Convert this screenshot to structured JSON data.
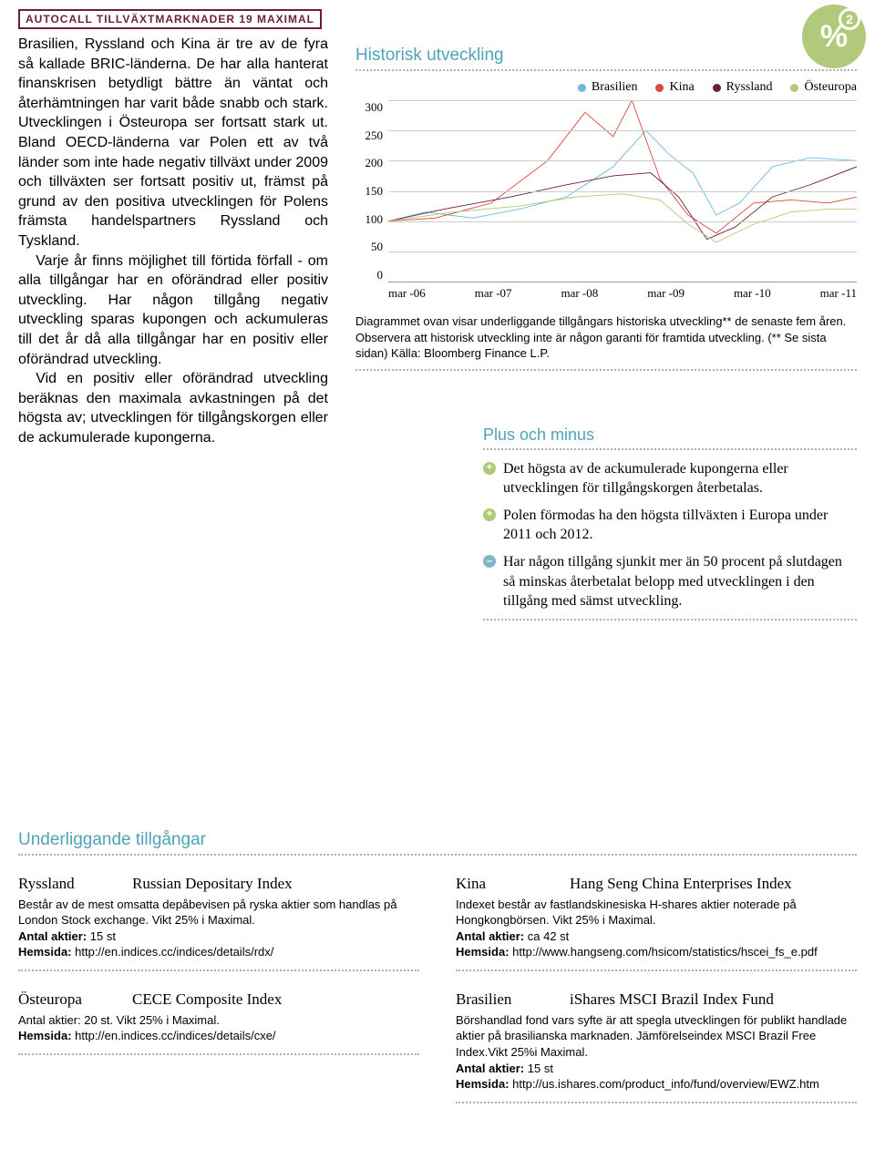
{
  "header_tag": "AUTOCALL TILLVÄXTMARKNADER 19 MAXIMAL",
  "body": {
    "p1": "Brasilien, Ryssland och Kina är tre av de fyra så kallade BRIC-länderna. De har alla hanterat finanskrisen betydligt bättre än väntat och återhämtningen har varit både snabb och stark. Utvecklingen i Östeuropa ser fortsatt stark ut. Bland OECD-länderna var Polen ett av två länder som inte hade negativ tillväxt under 2009 och tillväxten ser fortsatt positiv ut, främst på grund av den positiva utvecklingen för Polens främsta handelspartners Ryssland och Tyskland.",
    "p2": "Varje år finns möjlighet till förtida förfall - om alla tillgångar har en oförändrad eller positiv utveckling. Har någon tillgång negativ utveckling sparas kupongen och ackumuleras till det år då alla tillgångar har en positiv eller oförändrad utveckling.",
    "p3": "Vid en positiv eller oförändrad utveckling beräknas den maximala avkastningen på det högsta av; utvecklingen för tillgångskorgen eller de ackumulerade kupongerna."
  },
  "badge": {
    "text": "%",
    "sub": "2",
    "bg": "#b1c97a"
  },
  "chart": {
    "title": "Historisk utveckling",
    "type": "line",
    "ylim": [
      0,
      300
    ],
    "ytick_step": 50,
    "yticks": [
      "300",
      "250",
      "200",
      "150",
      "100",
      "50",
      "0"
    ],
    "xticks": [
      "mar -06",
      "mar -07",
      "mar -08",
      "mar -09",
      "mar -10",
      "mar -11"
    ],
    "grid_color": "#cccccc",
    "background": "#ffffff",
    "series": [
      {
        "name": "Brasilien",
        "color": "#6fb8e0",
        "points": [
          [
            0,
            100
          ],
          [
            8,
            115
          ],
          [
            18,
            105
          ],
          [
            28,
            120
          ],
          [
            38,
            140
          ],
          [
            48,
            190
          ],
          [
            55,
            250
          ],
          [
            60,
            210
          ],
          [
            65,
            180
          ],
          [
            70,
            110
          ],
          [
            75,
            130
          ],
          [
            82,
            190
          ],
          [
            90,
            205
          ],
          [
            100,
            200
          ]
        ]
      },
      {
        "name": "Kina",
        "color": "#d9483b",
        "points": [
          [
            0,
            100
          ],
          [
            10,
            105
          ],
          [
            22,
            130
          ],
          [
            34,
            200
          ],
          [
            42,
            280
          ],
          [
            48,
            240
          ],
          [
            52,
            300
          ],
          [
            58,
            170
          ],
          [
            64,
            110
          ],
          [
            70,
            80
          ],
          [
            78,
            130
          ],
          [
            86,
            135
          ],
          [
            94,
            130
          ],
          [
            100,
            140
          ]
        ]
      },
      {
        "name": "Ryssland",
        "color": "#6b1f3e",
        "points": [
          [
            0,
            100
          ],
          [
            12,
            120
          ],
          [
            26,
            140
          ],
          [
            38,
            160
          ],
          [
            48,
            175
          ],
          [
            56,
            180
          ],
          [
            62,
            140
          ],
          [
            68,
            70
          ],
          [
            74,
            90
          ],
          [
            82,
            140
          ],
          [
            90,
            160
          ],
          [
            100,
            190
          ]
        ]
      },
      {
        "name": "Östeuropa",
        "color": "#b1c97a",
        "points": [
          [
            0,
            100
          ],
          [
            14,
            115
          ],
          [
            28,
            125
          ],
          [
            40,
            140
          ],
          [
            50,
            145
          ],
          [
            58,
            135
          ],
          [
            64,
            95
          ],
          [
            70,
            65
          ],
          [
            78,
            95
          ],
          [
            86,
            115
          ],
          [
            94,
            120
          ],
          [
            100,
            120
          ]
        ]
      }
    ],
    "caption": "Diagrammet ovan visar underliggande tillgångars historiska utveckling** de senaste fem åren. Observera att historisk utveckling inte är någon garanti för framtida utveckling. (** Se sista sidan) Källa: Bloomberg Finance L.P."
  },
  "plus_minus": {
    "title": "Plus och minus",
    "items": [
      {
        "sign": "+",
        "color": "#b1c97a",
        "text": "Det högsta av de ackumulerade kupongerna eller utvecklingen för tillgångskorgen återbetalas."
      },
      {
        "sign": "+",
        "color": "#b1c97a",
        "text": "Polen förmodas ha den högsta tillväxten i Europa under 2011 och 2012."
      },
      {
        "sign": "–",
        "color": "#7fb8c8",
        "text": "Har någon tillgång sjunkit mer än 50 procent på slutdagen så minskas återbetalat belopp med utvecklingen i den tillgång med sämst utveckling."
      }
    ]
  },
  "underlying": {
    "title": "Underliggande tillgångar",
    "labels": {
      "antal": "Antal aktier:",
      "hemsida": "Hemsida:"
    },
    "items": [
      {
        "country": "Ryssland",
        "index": "Russian Depositary Index",
        "desc": "Består av de mest omsatta depåbevisen på ryska aktier som handlas på London Stock exchange. Vikt 25% i Maximal.",
        "antal": "15 st",
        "hemsida": "http://en.indices.cc/indices/details/rdx/"
      },
      {
        "country": "Kina",
        "index": "Hang Seng China Enterprises Index",
        "desc": "Indexet består av fastlandskinesiska H-shares aktier noterade på Hongkongbörsen. Vikt 25% i Maximal.",
        "antal": "ca 42 st",
        "hemsida": "http://www.hangseng.com/hsicom/statistics/hscei_fs_e.pdf"
      },
      {
        "country": "Östeuropa",
        "index": "CECE Composite Index",
        "desc": "Antal aktier: 20 st. Vikt 25% i Maximal.",
        "antal": "",
        "hemsida": "http://en.indices.cc/indices/details/cxe/"
      },
      {
        "country": "Brasilien",
        "index": "iShares MSCI Brazil Index Fund",
        "desc": "Börshandlad fond vars syfte är att spegla utvecklingen för publikt handlade aktier på brasilianska marknaden. Jämförelseindex MSCI Brazil Free Index.Vikt 25%i Maximal.",
        "antal": "15 st",
        "hemsida": "http://us.ishares.com/product_info/fund/overview/EWZ.htm"
      }
    ]
  }
}
